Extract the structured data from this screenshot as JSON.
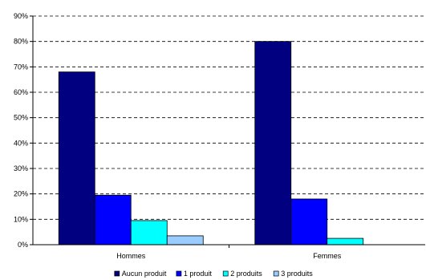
{
  "chart_data": {
    "type": "bar",
    "categories": [
      "Hommes",
      "Femmes"
    ],
    "series": [
      {
        "name": "Aucun produit",
        "color": "#000080",
        "values": [
          68,
          80
        ]
      },
      {
        "name": "1 produit",
        "color": "#0000ff",
        "values": [
          19.5,
          18
        ]
      },
      {
        "name": "2 produits",
        "color": "#00ffff",
        "values": [
          9.5,
          2.5
        ]
      },
      {
        "name": "3 produits",
        "color": "#99ccff",
        "values": [
          3.5,
          0
        ]
      }
    ],
    "yticks": [
      "0%",
      "10%",
      "20%",
      "30%",
      "40%",
      "50%",
      "60%",
      "70%",
      "80%",
      "90%"
    ],
    "ylim": [
      0,
      90
    ],
    "grid": true,
    "grid_style": "dashed",
    "legend_position": "bottom"
  }
}
